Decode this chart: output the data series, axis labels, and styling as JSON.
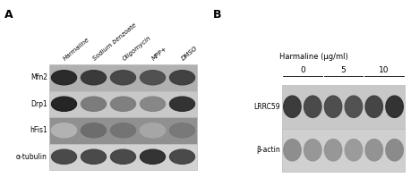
{
  "fig_width": 4.59,
  "fig_height": 1.99,
  "dpi": 100,
  "bg_color": "#ffffff",
  "panel_A": {
    "label": "A",
    "col_labels": [
      "Harmaline",
      "Sodium benzoate",
      "Oligomycin",
      "MPP+",
      "DMSO"
    ],
    "col_label_fontsize": 5.0,
    "row_labels": [
      "Mfn2",
      "Drp1",
      "hFis1",
      "α-tubulin"
    ],
    "row_label_fontsize": 5.5,
    "n_cols": 5,
    "n_rows": 4,
    "box_edge_color": "#bbbbbb",
    "box_face_colors": [
      "#2a2a2a",
      "#c8c8c8",
      "#787878",
      "#d0d0d0"
    ],
    "mfn2_intensities": [
      0.85,
      0.78,
      0.72,
      0.68,
      0.75
    ],
    "drp1_intensities": [
      0.88,
      0.5,
      0.48,
      0.45,
      0.82
    ],
    "hfis1_intensities": [
      0.25,
      0.55,
      0.52,
      0.3,
      0.5
    ],
    "tubu_intensities": [
      0.72,
      0.72,
      0.72,
      0.82,
      0.72
    ]
  },
  "panel_B": {
    "label": "B",
    "title": "Harmaline (μg/ml)",
    "title_fontsize": 6.0,
    "dose_labels": [
      "0",
      "5",
      "10"
    ],
    "dose_fontsize": 6.5,
    "row_labels": [
      "LRRC59",
      "β-actin"
    ],
    "row_label_fontsize": 5.5,
    "n_cols": 6,
    "n_rows": 2,
    "box_edge_color": "#bbbbbb",
    "lrrc59_intensities": [
      0.78,
      0.72,
      0.7,
      0.68,
      0.74,
      0.82
    ],
    "bactin_intensities": [
      0.42,
      0.38,
      0.38,
      0.36,
      0.4,
      0.43
    ]
  }
}
